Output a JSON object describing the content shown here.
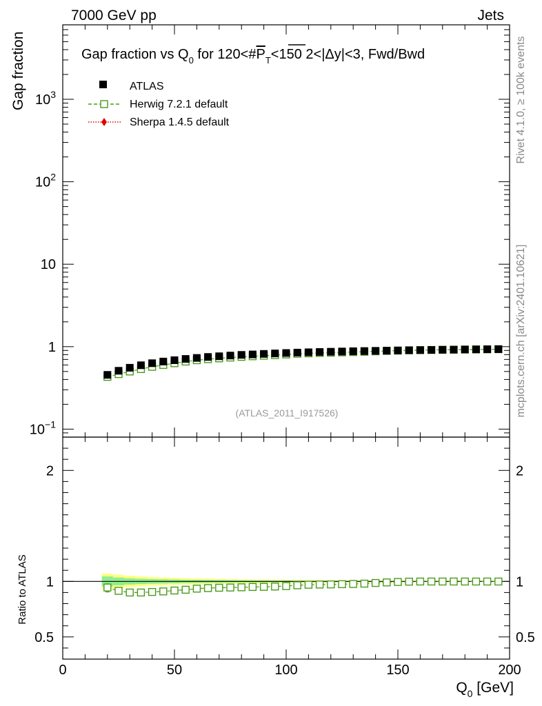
{
  "header": {
    "left": "7000 GeV pp",
    "right": "Jets",
    "side_top": "Rivet 4.1.0, ≥ 100k events",
    "side_bottom": "mcplots.cern.ch [arXiv:2401.10621]"
  },
  "colors": {
    "data": "#000000",
    "herwig": "#4a9a1a",
    "sherpa": "#e00000",
    "band_yellow": "#ffff80",
    "band_green": "#90ee90"
  },
  "chart_data": {
    "type": "scatter",
    "title": {
      "prefix": "Gap fraction vs Q",
      "sub0": "0",
      "mid": " for 120<#",
      "pbar": "P",
      "subT": "T",
      "suffix": "<150  2<|Δy|<3, Fwd/Bwd"
    },
    "watermark": "(ATLAS_2011_I917526)",
    "ylabel": "Gap fraction",
    "ratio_ylabel": "Ratio to ATLAS",
    "xlabel": {
      "main": "Q",
      "sub": "0",
      "unit": " [GeV]"
    },
    "xlim": [
      0,
      200
    ],
    "ylim": [
      0.08,
      8000
    ],
    "ratio_ylim": [
      0.3,
      2.3
    ],
    "x_ticks": [
      {
        "v": 0,
        "label": "0"
      },
      {
        "v": 50,
        "label": "50"
      },
      {
        "v": 100,
        "label": "100"
      },
      {
        "v": 150,
        "label": "150"
      },
      {
        "v": 200,
        "label": "200"
      }
    ],
    "y_ticks": [
      {
        "v": 0.1,
        "base": "10",
        "exp": "−1"
      },
      {
        "v": 1,
        "base": "1",
        "exp": ""
      },
      {
        "v": 10,
        "base": "10",
        "exp": ""
      },
      {
        "v": 100,
        "base": "10",
        "exp": "2"
      },
      {
        "v": 1000,
        "base": "10",
        "exp": "3"
      }
    ],
    "ratio_ticks": [
      {
        "v": 0.5,
        "label": "0.5"
      },
      {
        "v": 1,
        "label": "1"
      },
      {
        "v": 2,
        "label": "2"
      }
    ],
    "legend": [
      "ATLAS",
      "Herwig 7.2.1 default",
      "Sherpa 1.4.5 default"
    ],
    "x": [
      20,
      25,
      30,
      35,
      40,
      45,
      50,
      55,
      60,
      65,
      70,
      75,
      80,
      85,
      90,
      95,
      100,
      105,
      110,
      115,
      120,
      125,
      130,
      135,
      140,
      145,
      150,
      155,
      160,
      165,
      170,
      175,
      180,
      185,
      190,
      195
    ],
    "series": [
      {
        "name": "ATLAS",
        "values": [
          0.455,
          0.51,
          0.555,
          0.595,
          0.63,
          0.66,
          0.685,
          0.71,
          0.73,
          0.75,
          0.765,
          0.78,
          0.795,
          0.805,
          0.817,
          0.828,
          0.838,
          0.847,
          0.855,
          0.862,
          0.868,
          0.874,
          0.88,
          0.885,
          0.89,
          0.895,
          0.9,
          0.905,
          0.909,
          0.913,
          0.917,
          0.92,
          0.924,
          0.927,
          0.93,
          0.933
        ]
      },
      {
        "name": "Herwig 7.2.1 default",
        "values": [
          0.43,
          0.465,
          0.5,
          0.535,
          0.57,
          0.6,
          0.63,
          0.66,
          0.685,
          0.705,
          0.722,
          0.738,
          0.752,
          0.765,
          0.777,
          0.79,
          0.803,
          0.818,
          0.83,
          0.838,
          0.845,
          0.852,
          0.86,
          0.868,
          0.878,
          0.887,
          0.895,
          0.903,
          0.908,
          0.912,
          0.916,
          0.919,
          0.923,
          0.926,
          0.929,
          0.932
        ]
      }
    ],
    "ratio": {
      "herwig": [
        0.945,
        0.915,
        0.9,
        0.9,
        0.905,
        0.91,
        0.918,
        0.925,
        0.935,
        0.94,
        0.943,
        0.945,
        0.947,
        0.95,
        0.951,
        0.954,
        0.958,
        0.965,
        0.97,
        0.972,
        0.973,
        0.975,
        0.977,
        0.98,
        0.986,
        0.991,
        0.995,
        0.998,
        0.999,
        0.999,
        0.999,
        0.999,
        0.999,
        0.999,
        0.999,
        0.999
      ],
      "herwig_err": [
        0.04,
        0.03,
        0.025,
        0.022,
        0.02,
        0.018,
        0.016,
        0.014,
        0.013,
        0.012,
        0.011,
        0.01,
        0.01,
        0.009,
        0.009,
        0.008,
        0.008,
        0.008,
        0.007,
        0.007,
        0.007,
        0.007,
        0.006,
        0.006,
        0.006,
        0.006,
        0.006,
        0.006,
        0.005,
        0.005,
        0.005,
        0.005,
        0.005,
        0.005,
        0.005,
        0.005
      ],
      "band_outer": [
        0.07,
        0.06,
        0.05,
        0.045,
        0.04,
        0.036,
        0.032,
        0.029,
        0.027,
        0.025,
        0.023,
        0.021,
        0.019,
        0.018,
        0.017,
        0.016,
        0.015,
        0.014,
        0.013,
        0.012,
        0.011,
        0.01,
        0.01,
        0.009,
        0.009,
        0.008,
        0.008,
        0.008,
        0.007,
        0.007,
        0.007,
        0.007,
        0.006,
        0.006,
        0.006,
        0.006
      ],
      "band_inner": [
        0.045,
        0.035,
        0.028,
        0.024,
        0.021,
        0.019,
        0.017,
        0.015,
        0.014,
        0.013,
        0.012,
        0.011,
        0.01,
        0.009,
        0.009,
        0.008,
        0.008,
        0.007,
        0.007,
        0.006,
        0.006,
        0.006,
        0.005,
        0.005,
        0.005,
        0.005,
        0.004,
        0.004,
        0.004,
        0.004,
        0.004,
        0.004,
        0.004,
        0.004,
        0.004,
        0.004
      ]
    }
  }
}
